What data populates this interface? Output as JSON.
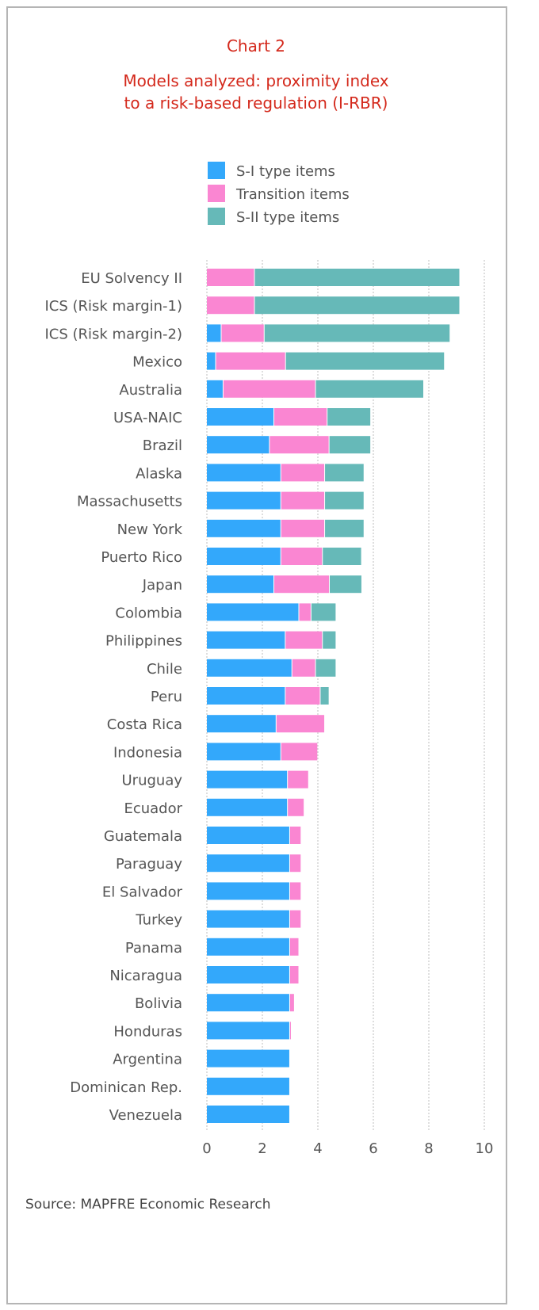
{
  "chart_data": {
    "type": "bar",
    "orientation": "horizontal",
    "stacked": true,
    "label": "Chart 2",
    "title": "Models analyzed: proximity index to a risk-based regulation (I-RBR)",
    "title_lines": [
      "Models analyzed: proximity index",
      "to a risk-based regulation (I-RBR)"
    ],
    "xlim": [
      0,
      10
    ],
    "xticks": [
      0,
      2,
      4,
      6,
      8,
      10
    ],
    "grid": true,
    "legend_position": "top",
    "categories": [
      "EU Solvency II",
      "ICS (Risk margin-1)",
      "ICS (Risk margin-2)",
      "Mexico",
      "Australia",
      "USA-NAIC",
      "Brazil",
      "Alaska",
      "Massachusetts",
      "New York",
      "Puerto Rico",
      "Japan",
      "Colombia",
      "Philippines",
      "Chile",
      "Peru",
      "Costa Rica",
      "Indonesia",
      "Uruguay",
      "Ecuador",
      "Guatemala",
      "Paraguay",
      "El Salvador",
      "Turkey",
      "Panama",
      "Nicaragua",
      "Bolivia",
      "Honduras",
      "Argentina",
      "Dominican Rep.",
      "Venezuela"
    ],
    "series": [
      {
        "name": "S-I type items",
        "color": "#33a8fb",
        "values": [
          0,
          0,
          0.5,
          0.3,
          0.57,
          2.4,
          2.24,
          2.65,
          2.65,
          2.65,
          2.65,
          2.4,
          3.3,
          2.81,
          3.05,
          2.81,
          2.48,
          2.65,
          2.89,
          2.89,
          2.97,
          2.97,
          2.97,
          2.97,
          2.97,
          2.97,
          2.97,
          2.97,
          2.97,
          2.97,
          2.97
        ]
      },
      {
        "name": "Transition items",
        "color": "#fa86d2",
        "values": [
          1.7,
          1.7,
          1.55,
          2.52,
          3.33,
          1.92,
          2.15,
          1.58,
          1.58,
          1.58,
          1.5,
          2.0,
          0.44,
          1.34,
          0.85,
          1.26,
          1.75,
          1.33,
          0.76,
          0.6,
          0.41,
          0.41,
          0.41,
          0.41,
          0.33,
          0.33,
          0.17,
          0.05,
          0,
          0,
          0
        ]
      },
      {
        "name": "S-II type items",
        "color": "#66b9b8",
        "values": [
          7.4,
          7.4,
          6.7,
          5.73,
          3.9,
          1.57,
          1.5,
          1.42,
          1.42,
          1.42,
          1.41,
          1.17,
          0.9,
          0.49,
          0.74,
          0.32,
          0,
          0,
          0,
          0,
          0,
          0,
          0,
          0,
          0,
          0,
          0,
          0,
          0,
          0,
          0
        ]
      }
    ],
    "source": "Source: MAPFRE Economic Research"
  }
}
